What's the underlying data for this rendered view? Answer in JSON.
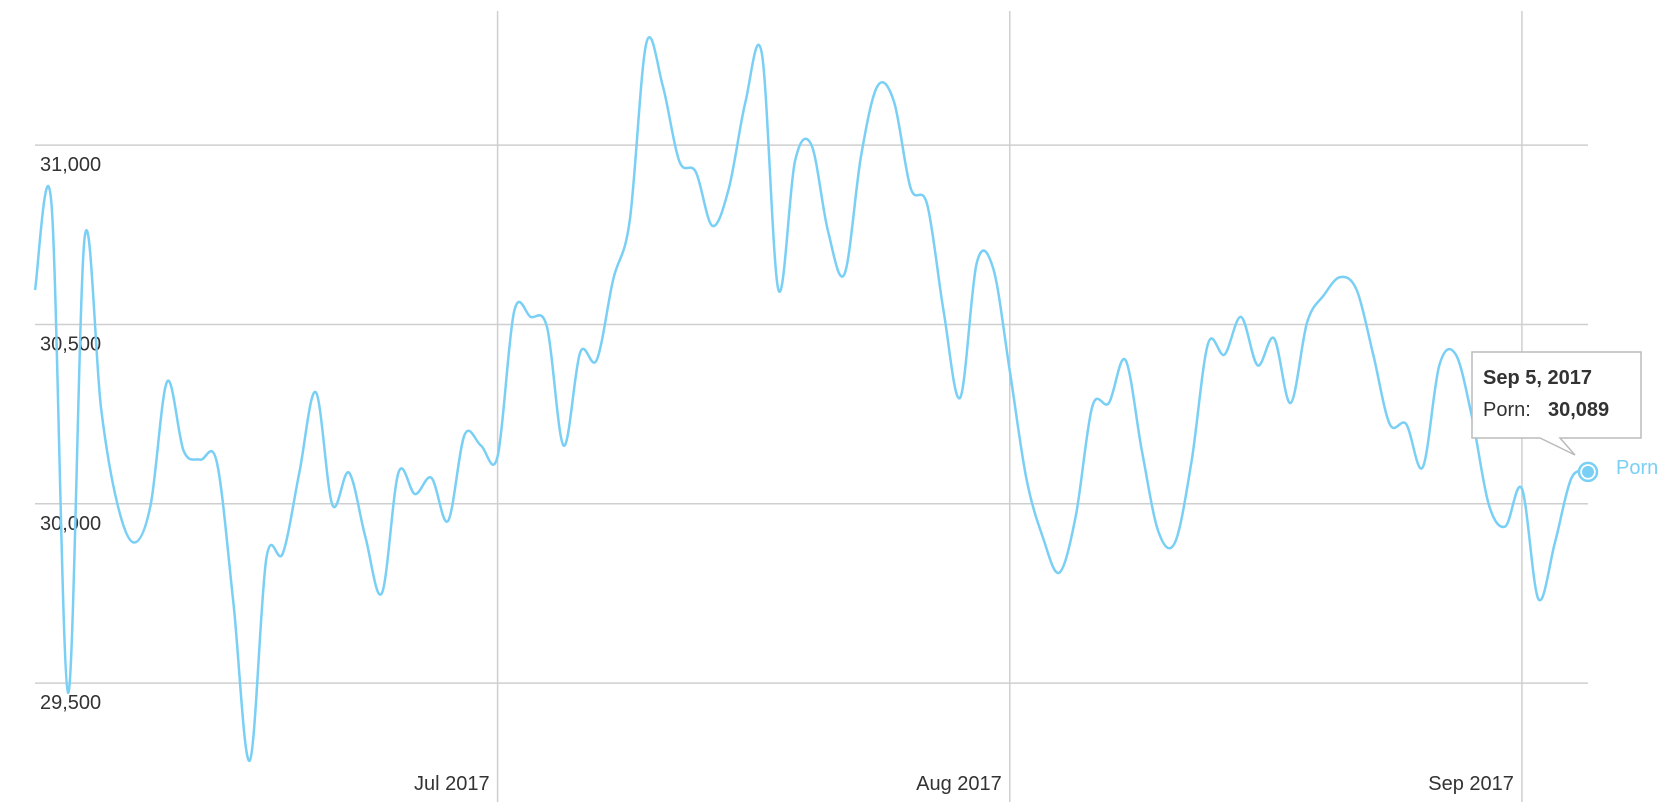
{
  "chart_data": {
    "type": "line",
    "x": [
      "2017-06-03",
      "2017-06-04",
      "2017-06-05",
      "2017-06-06",
      "2017-06-07",
      "2017-06-08",
      "2017-06-09",
      "2017-06-10",
      "2017-06-11",
      "2017-06-12",
      "2017-06-13",
      "2017-06-14",
      "2017-06-15",
      "2017-06-16",
      "2017-06-17",
      "2017-06-18",
      "2017-06-19",
      "2017-06-20",
      "2017-06-21",
      "2017-06-22",
      "2017-06-23",
      "2017-06-24",
      "2017-06-25",
      "2017-06-26",
      "2017-06-27",
      "2017-06-28",
      "2017-06-29",
      "2017-06-30",
      "2017-07-01",
      "2017-07-02",
      "2017-07-03",
      "2017-07-04",
      "2017-07-05",
      "2017-07-06",
      "2017-07-07",
      "2017-07-08",
      "2017-07-09",
      "2017-07-10",
      "2017-07-11",
      "2017-07-12",
      "2017-07-13",
      "2017-07-14",
      "2017-07-15",
      "2017-07-16",
      "2017-07-17",
      "2017-07-18",
      "2017-07-19",
      "2017-07-20",
      "2017-07-21",
      "2017-07-22",
      "2017-07-23",
      "2017-07-24",
      "2017-07-25",
      "2017-07-26",
      "2017-07-27",
      "2017-07-28",
      "2017-07-29",
      "2017-07-30",
      "2017-07-31",
      "2017-08-01",
      "2017-08-02",
      "2017-08-03",
      "2017-08-04",
      "2017-08-05",
      "2017-08-06",
      "2017-08-07",
      "2017-08-08",
      "2017-08-09",
      "2017-08-10",
      "2017-08-11",
      "2017-08-12",
      "2017-08-13",
      "2017-08-14",
      "2017-08-15",
      "2017-08-16",
      "2017-08-17",
      "2017-08-18",
      "2017-08-19",
      "2017-08-20",
      "2017-08-21",
      "2017-08-22",
      "2017-08-23",
      "2017-08-24",
      "2017-08-25",
      "2017-08-26",
      "2017-08-27",
      "2017-08-28",
      "2017-08-29",
      "2017-08-30",
      "2017-08-31",
      "2017-09-01",
      "2017-09-02",
      "2017-09-03",
      "2017-09-04",
      "2017-09-05"
    ],
    "series": [
      {
        "name": "Porn",
        "color": "#7acff5",
        "values": [
          30596,
          30835,
          29473,
          30740,
          30266,
          29997,
          29892,
          29997,
          30341,
          30147,
          30123,
          30117,
          29728,
          29284,
          29847,
          29862,
          30087,
          30311,
          29997,
          30087,
          29907,
          29751,
          30087,
          30027,
          30072,
          29952,
          30192,
          30162,
          30132,
          30536,
          30521,
          30491,
          30162,
          30422,
          30401,
          30626,
          30790,
          31284,
          31165,
          30955,
          30925,
          30775,
          30880,
          31120,
          31254,
          30596,
          30955,
          31000,
          30760,
          30641,
          30970,
          31165,
          31120,
          30880,
          30835,
          30536,
          30296,
          30671,
          30656,
          30371,
          30072,
          29907,
          29808,
          29967,
          30272,
          30281,
          30401,
          30147,
          29922,
          29892,
          30117,
          30446,
          30416,
          30521,
          30386,
          30461,
          30281,
          30506,
          30581,
          30632,
          30596,
          30416,
          30222,
          30222,
          30102,
          30386,
          30416,
          30237,
          29997,
          29937,
          30042,
          29734,
          29892,
          30072,
          30089
        ]
      }
    ],
    "xlim": [
      "2017-06-03",
      "2017-09-05"
    ],
    "xticks": [
      {
        "value": "2017-07-01",
        "label": "Jul 2017"
      },
      {
        "value": "2017-08-01",
        "label": "Aug 2017"
      },
      {
        "value": "2017-09-01",
        "label": "Sep 2017"
      }
    ],
    "ylim": [
      29174,
      31374
    ],
    "yticks": [
      {
        "value": 29500,
        "label": "29,500"
      },
      {
        "value": 30000,
        "label": "30,000"
      },
      {
        "value": 30500,
        "label": "30,500"
      },
      {
        "value": 31000,
        "label": "31,000"
      }
    ],
    "grid": true,
    "tooltip": {
      "x_label": "Sep 5, 2017",
      "series_label": "Porn:",
      "value_label": "30,089"
    }
  }
}
